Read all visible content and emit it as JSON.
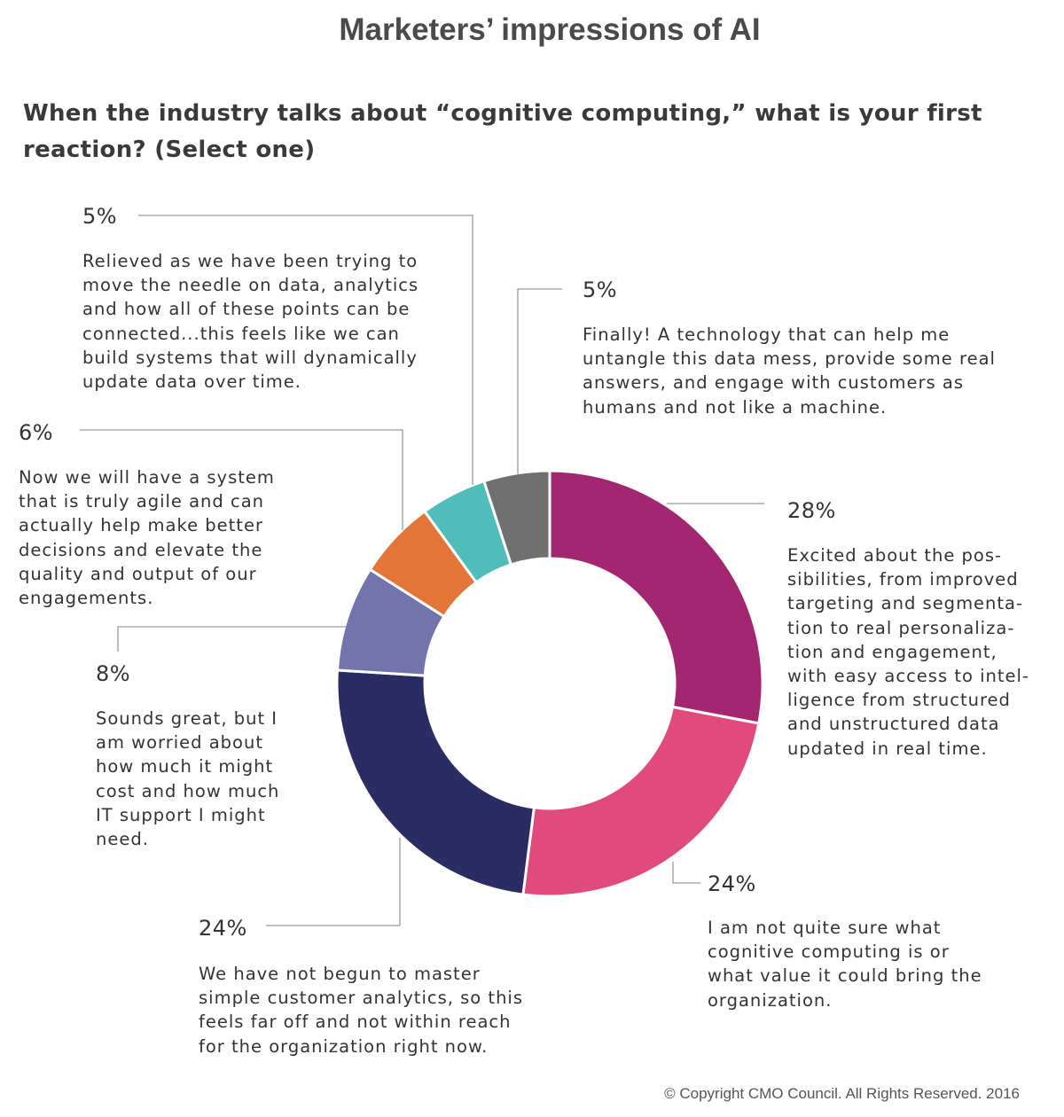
{
  "header": {
    "title": "Marketers’ impressions of AI",
    "question": "When the industry talks about “cognitive computing,” what is your first reaction? (Select one)"
  },
  "chart_data": {
    "type": "pie",
    "style": "donut",
    "unit": "%",
    "slices": [
      {
        "label": "28%",
        "value": 28,
        "color": "#a32670",
        "text": "Excited about the pos-\nsibilities, from improved\ntargeting and segmenta-\ntion to real personaliza-\ntion and engagement,\nwith easy access to intel-\nligence from structured\nand unstructured data\nupdated in real time."
      },
      {
        "label": "24%",
        "value": 24,
        "color": "#e04a7d",
        "text": "I am not quite sure what\ncognitive computing is or\nwhat value it could bring the\norganization."
      },
      {
        "label": "24%",
        "value": 24,
        "color": "#2b2c63",
        "text": "We have not begun to master\nsimple customer analytics, so this\nfeels far off and not within reach\nfor the organization right now."
      },
      {
        "label": "8%",
        "value": 8,
        "color": "#7274ab",
        "text": "Sounds great, but I\nam worried about\nhow much it might\ncost and how much\nIT support I might\nneed."
      },
      {
        "label": "6%",
        "value": 6,
        "color": "#e27537",
        "text": "Now we will have a system\nthat is truly agile and can\nactually help make better\ndecisions and elevate the\nquality and output of our\nengagements."
      },
      {
        "label": "5%",
        "value": 5,
        "color": "#4fbdb9",
        "text": "Relieved as we have been trying to\nmove the needle on data, analytics\nand how all of these points can be\nconnected...this feels like we can\nbuild systems that will dynamically\nupdate data over time."
      },
      {
        "label": "5%",
        "value": 5,
        "color": "#707070",
        "text": "Finally! A technology that can help me\nuntangle this data mess, provide some real\nanswers, and engage with customers as\nhumans and not like a machine."
      }
    ]
  },
  "footer": {
    "copyright": "© Copyright CMO Council. All Rights Reserved. 2016"
  }
}
